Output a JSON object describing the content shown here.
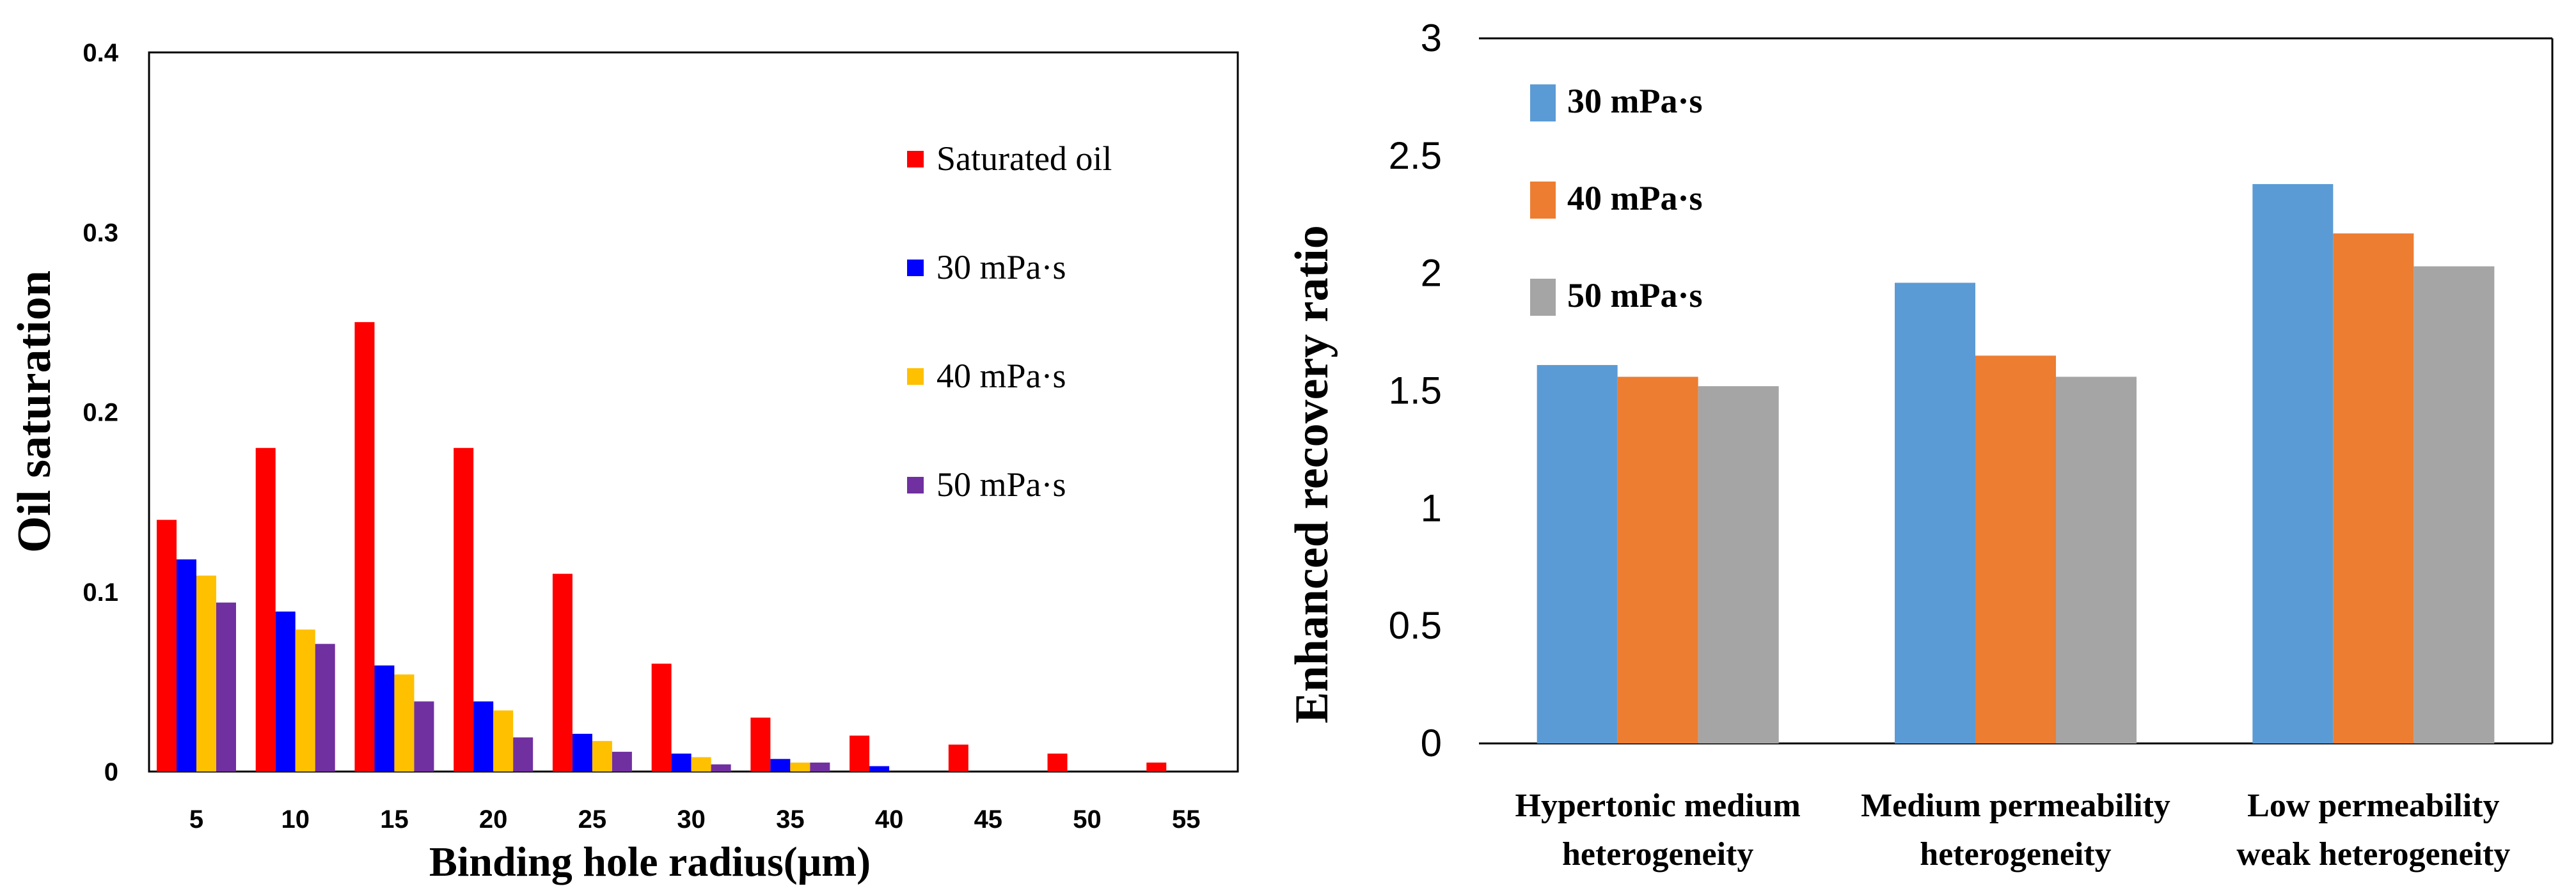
{
  "chart_data": [
    {
      "type": "bar",
      "title": "",
      "xlabel": "Binding hole radius(μm)",
      "ylabel": "Oil saturation",
      "ylim": [
        0,
        0.4
      ],
      "yticks": [
        "0",
        "0.1",
        "0.2",
        "0.3",
        "0.4"
      ],
      "categories": [
        "5",
        "10",
        "15",
        "20",
        "25",
        "30",
        "35",
        "40",
        "45",
        "50",
        "55"
      ],
      "grid": false,
      "legend_position": "right",
      "series": [
        {
          "name": "Saturated oil",
          "color": "#ff0000",
          "values": [
            0.14,
            0.18,
            0.25,
            0.18,
            0.11,
            0.06,
            0.03,
            0.02,
            0.015,
            0.01,
            0.005
          ]
        },
        {
          "name": "30 mPa·s",
          "color": "#0000ff",
          "values": [
            0.118,
            0.089,
            0.059,
            0.039,
            0.021,
            0.01,
            0.007,
            0.003,
            0,
            0,
            0
          ]
        },
        {
          "name": "40 mPa·s",
          "color": "#ffc000",
          "values": [
            0.109,
            0.079,
            0.054,
            0.034,
            0.017,
            0.008,
            0.005,
            0,
            0,
            0,
            0
          ]
        },
        {
          "name": "50 mPa·s",
          "color": "#7030a0",
          "values": [
            0.094,
            0.071,
            0.039,
            0.019,
            0.011,
            0.004,
            0.005,
            0,
            0,
            0,
            0
          ]
        }
      ]
    },
    {
      "type": "bar",
      "title": "",
      "xlabel": "",
      "ylabel": "Enhanced recovery ratio",
      "ylim": [
        0,
        3
      ],
      "yticks": [
        "0",
        "0.5",
        "1",
        "1.5",
        "2",
        "2.5",
        "3"
      ],
      "categories": [
        [
          "Hypertonic medium",
          "heterogeneity"
        ],
        [
          "Medium permeability",
          "heterogeneity"
        ],
        [
          "Low permeability",
          "weak heterogeneity"
        ]
      ],
      "grid": false,
      "legend_position": "top-left",
      "series": [
        {
          "name": "30 mPa·s",
          "color": "#5b9bd5",
          "values": [
            1.61,
            1.96,
            2.38
          ]
        },
        {
          "name": "40 mPa·s",
          "color": "#ed7d31",
          "values": [
            1.56,
            1.65,
            2.17
          ]
        },
        {
          "name": "50 mPa·s",
          "color": "#a5a5a5",
          "values": [
            1.52,
            1.56,
            2.03
          ]
        }
      ]
    }
  ]
}
